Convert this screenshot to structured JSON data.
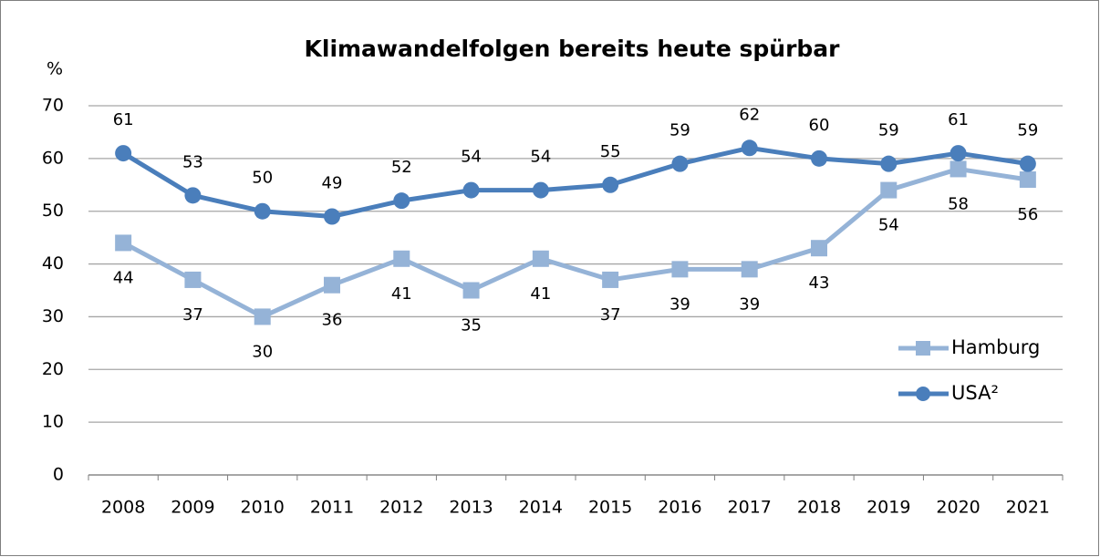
{
  "chart_data": {
    "type": "line",
    "title": "Klimawandelfolgen bereits heute spürbar",
    "y_label": "%",
    "categories": [
      "2008",
      "2009",
      "2010",
      "2011",
      "2012",
      "2013",
      "2014",
      "2015",
      "2016",
      "2017",
      "2018",
      "2019",
      "2020",
      "2021"
    ],
    "series": [
      {
        "name": "Hamburg",
        "color": "#95b3d7",
        "marker": "square",
        "values": [
          44,
          37,
          30,
          36,
          41,
          35,
          41,
          37,
          39,
          39,
          43,
          54,
          58,
          56
        ]
      },
      {
        "name": "USA²",
        "color": "#4a7ebb",
        "marker": "circle",
        "values": [
          61,
          53,
          50,
          49,
          52,
          54,
          54,
          55,
          59,
          62,
          60,
          59,
          61,
          59
        ]
      }
    ],
    "ylim": [
      0,
      70
    ],
    "yticks": [
      0,
      10,
      20,
      30,
      40,
      50,
      60,
      70
    ],
    "grid": true,
    "legend": "right"
  }
}
